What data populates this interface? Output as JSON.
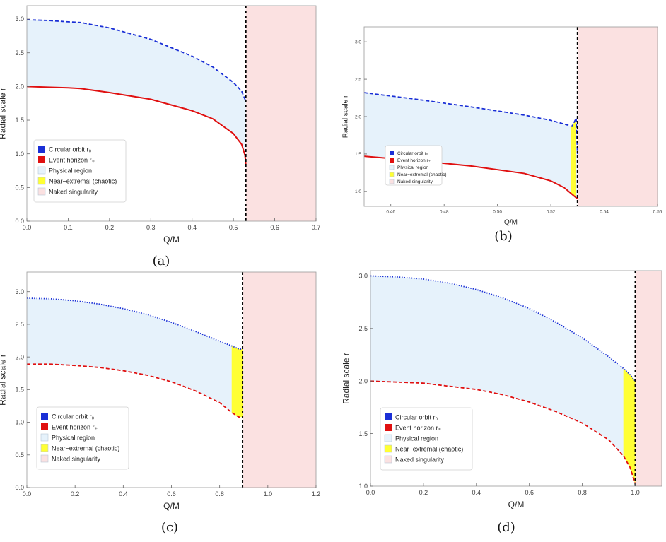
{
  "colors": {
    "orbit": "#1a2fd6",
    "horizon": "#e01010",
    "physical": "#e6f2fb",
    "chaotic": "#ffff33",
    "naked": "#fbe1e1",
    "extremal_line": "#000000"
  },
  "legend_entries": [
    {
      "label": "Circular orbit  r₀",
      "color": "#1a2fd6"
    },
    {
      "label": "Event horizon  r₊",
      "color": "#e01010"
    },
    {
      "label": "Physical region",
      "color": "#e6f2fb"
    },
    {
      "label": "Near−extremal (chaotic)",
      "color": "#ffff33"
    },
    {
      "label": "Naked singularity",
      "color": "#fbe1e1"
    }
  ],
  "chart_data": [
    {
      "type": "line",
      "caption": "(a)",
      "xlabel": "Q/M",
      "ylabel": "Radial scale r",
      "xlim": [
        0,
        0.7
      ],
      "ylim": [
        0,
        3.2
      ],
      "xticks": [
        "0.0",
        "0.1",
        "0.2",
        "0.3",
        "0.4",
        "0.5",
        "0.6",
        "0.7"
      ],
      "yticks": [
        "0.0",
        "0.5",
        "1.0",
        "1.5",
        "2.0",
        "2.5",
        "3.0"
      ],
      "extremal_q": 0.53,
      "chaotic_band": null,
      "line_style": "dashed",
      "legend_position": "bottom-left",
      "series": [
        {
          "key": "orbit",
          "style": "dashed",
          "x": [
            0,
            0.05,
            0.1,
            0.13,
            0.2,
            0.3,
            0.4,
            0.45,
            0.5,
            0.52,
            0.53
          ],
          "y": [
            2.99,
            2.98,
            2.96,
            2.95,
            2.87,
            2.7,
            2.45,
            2.29,
            2.06,
            1.93,
            1.78
          ]
        },
        {
          "key": "horizon",
          "style": "solid",
          "x": [
            0,
            0.05,
            0.1,
            0.13,
            0.2,
            0.3,
            0.4,
            0.45,
            0.5,
            0.52,
            0.528,
            0.53
          ],
          "y": [
            2.0,
            1.99,
            1.98,
            1.97,
            1.91,
            1.81,
            1.64,
            1.52,
            1.3,
            1.14,
            0.98,
            0.85
          ]
        }
      ]
    },
    {
      "type": "line",
      "caption": "(b)",
      "xlabel": "Q/M",
      "ylabel": "Radial scale r",
      "xlim": [
        0.45,
        0.56
      ],
      "ylim": [
        0.8,
        3.2
      ],
      "xticks": [
        "0.46",
        "0.48",
        "0.50",
        "0.52",
        "0.54",
        "0.56"
      ],
      "yticks": [
        "1.0",
        "1.5",
        "2.0",
        "2.5",
        "3.0"
      ],
      "extremal_q": 0.53,
      "chaotic_band": [
        0.5275,
        0.5295
      ],
      "line_style": "dashed",
      "legend_position": "bottom-left",
      "series": [
        {
          "key": "orbit",
          "style": "dashed",
          "x": [
            0.45,
            0.47,
            0.49,
            0.51,
            0.52,
            0.528,
            0.5295,
            0.53
          ],
          "y": [
            2.32,
            2.23,
            2.13,
            2.02,
            1.95,
            1.87,
            1.98,
            1.5
          ]
        },
        {
          "key": "horizon",
          "style": "solid",
          "x": [
            0.45,
            0.47,
            0.49,
            0.51,
            0.52,
            0.525,
            0.528,
            0.53
          ],
          "y": [
            1.47,
            1.41,
            1.34,
            1.24,
            1.14,
            1.05,
            0.96,
            0.9
          ]
        }
      ]
    },
    {
      "type": "line",
      "caption": "(c)",
      "xlabel": "Q/M",
      "ylabel": "Radial scale r",
      "xlim": [
        0,
        1.2
      ],
      "ylim": [
        0,
        3.3
      ],
      "xticks": [
        "0.0",
        "0.2",
        "0.4",
        "0.6",
        "0.8",
        "1.0",
        "1.2"
      ],
      "yticks": [
        "0.0",
        "0.5",
        "1.0",
        "1.5",
        "2.0",
        "2.5",
        "3.0"
      ],
      "extremal_q": 0.895,
      "chaotic_band": [
        0.85,
        0.895
      ],
      "line_style": "dotted",
      "legend_position": "bottom-left",
      "series": [
        {
          "key": "orbit",
          "style": "dotted",
          "x": [
            0,
            0.1,
            0.2,
            0.3,
            0.4,
            0.5,
            0.6,
            0.7,
            0.8,
            0.85,
            0.88,
            0.895
          ],
          "y": [
            2.9,
            2.89,
            2.86,
            2.81,
            2.74,
            2.65,
            2.53,
            2.39,
            2.24,
            2.17,
            2.12,
            2.12
          ]
        },
        {
          "key": "horizon",
          "style": "dashed",
          "x": [
            0,
            0.1,
            0.2,
            0.3,
            0.4,
            0.5,
            0.6,
            0.7,
            0.8,
            0.85,
            0.88,
            0.895
          ],
          "y": [
            1.89,
            1.89,
            1.87,
            1.84,
            1.79,
            1.72,
            1.62,
            1.48,
            1.3,
            1.15,
            1.08,
            1.08
          ]
        }
      ]
    },
    {
      "type": "line",
      "caption": "(d)",
      "xlabel": "Q/M",
      "ylabel": "Radial scale r",
      "xlim": [
        0,
        1.1
      ],
      "ylim": [
        1.0,
        3.05
      ],
      "xticks": [
        "0.0",
        "0.2",
        "0.4",
        "0.6",
        "0.8",
        "1.0"
      ],
      "yticks": [
        "1.0",
        "1.5",
        "2.0",
        "2.5",
        "3.0"
      ],
      "extremal_q": 1.0,
      "chaotic_band": [
        0.955,
        1.0
      ],
      "line_style": "dotted",
      "legend_position": "bottom-left",
      "series": [
        {
          "key": "orbit",
          "style": "dotted",
          "x": [
            0,
            0.1,
            0.2,
            0.3,
            0.4,
            0.5,
            0.6,
            0.7,
            0.8,
            0.9,
            0.955,
            0.98,
            1.0
          ],
          "y": [
            3.0,
            2.99,
            2.97,
            2.93,
            2.87,
            2.79,
            2.69,
            2.56,
            2.41,
            2.23,
            2.12,
            2.06,
            2.0
          ]
        },
        {
          "key": "horizon",
          "style": "dashed",
          "x": [
            0,
            0.1,
            0.2,
            0.3,
            0.4,
            0.5,
            0.6,
            0.7,
            0.8,
            0.9,
            0.955,
            0.98,
            1.0
          ],
          "y": [
            2.0,
            1.99,
            1.98,
            1.95,
            1.92,
            1.87,
            1.8,
            1.71,
            1.6,
            1.44,
            1.29,
            1.18,
            1.02
          ]
        }
      ]
    }
  ]
}
